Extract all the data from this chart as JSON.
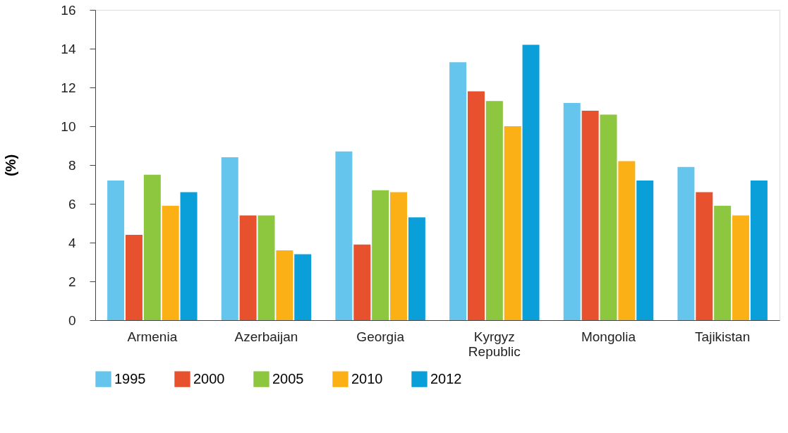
{
  "chart_data": {
    "type": "bar",
    "ylabel": "(%)",
    "categories": [
      "Armenia",
      "Azerbaijan",
      "Georgia",
      "Kyrgyz Republic",
      "Mongolia",
      "Tajikistan"
    ],
    "series": [
      {
        "name": "1995",
        "color": "#66c5ec",
        "values": [
          7.2,
          8.4,
          8.7,
          13.3,
          11.2,
          7.9
        ]
      },
      {
        "name": "2000",
        "color": "#e8512e",
        "values": [
          4.4,
          5.4,
          3.9,
          11.8,
          10.8,
          6.6
        ]
      },
      {
        "name": "2005",
        "color": "#8dc63f",
        "values": [
          7.5,
          5.4,
          6.7,
          11.3,
          10.6,
          5.9
        ]
      },
      {
        "name": "2010",
        "color": "#fbb116",
        "values": [
          5.9,
          3.6,
          6.6,
          10.0,
          8.2,
          5.4
        ]
      },
      {
        "name": "2012",
        "color": "#0a9fd8",
        "values": [
          6.6,
          3.4,
          5.3,
          14.2,
          7.2,
          7.2
        ]
      }
    ],
    "ylim": [
      0,
      16
    ],
    "yticks": [
      0,
      2,
      4,
      6,
      8,
      10,
      12,
      14,
      16
    ],
    "grid": false,
    "legend": "bottom"
  }
}
